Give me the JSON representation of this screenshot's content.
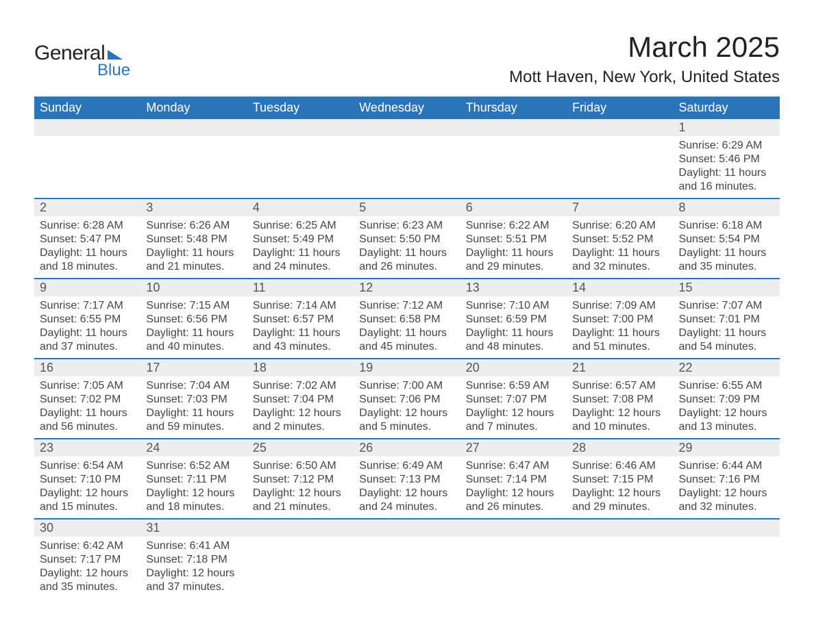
{
  "brand": {
    "name1": "General",
    "name2": "Blue",
    "tri_color": "#2a74b8"
  },
  "title": "March 2025",
  "location": "Mott Haven, New York, United States",
  "header_bg": "#2a74b8",
  "header_fg": "#ffffff",
  "row_stripe_bg": "#ededed",
  "row_divider_color": "#2a74b8",
  "text_color": "#444444",
  "days": [
    "Sunday",
    "Monday",
    "Tuesday",
    "Wednesday",
    "Thursday",
    "Friday",
    "Saturday"
  ],
  "weeks": [
    [
      null,
      null,
      null,
      null,
      null,
      null,
      {
        "n": "1",
        "sr": "Sunrise: 6:29 AM",
        "ss": "Sunset: 5:46 PM",
        "dl": "Daylight: 11 hours and 16 minutes."
      }
    ],
    [
      {
        "n": "2",
        "sr": "Sunrise: 6:28 AM",
        "ss": "Sunset: 5:47 PM",
        "dl": "Daylight: 11 hours and 18 minutes."
      },
      {
        "n": "3",
        "sr": "Sunrise: 6:26 AM",
        "ss": "Sunset: 5:48 PM",
        "dl": "Daylight: 11 hours and 21 minutes."
      },
      {
        "n": "4",
        "sr": "Sunrise: 6:25 AM",
        "ss": "Sunset: 5:49 PM",
        "dl": "Daylight: 11 hours and 24 minutes."
      },
      {
        "n": "5",
        "sr": "Sunrise: 6:23 AM",
        "ss": "Sunset: 5:50 PM",
        "dl": "Daylight: 11 hours and 26 minutes."
      },
      {
        "n": "6",
        "sr": "Sunrise: 6:22 AM",
        "ss": "Sunset: 5:51 PM",
        "dl": "Daylight: 11 hours and 29 minutes."
      },
      {
        "n": "7",
        "sr": "Sunrise: 6:20 AM",
        "ss": "Sunset: 5:52 PM",
        "dl": "Daylight: 11 hours and 32 minutes."
      },
      {
        "n": "8",
        "sr": "Sunrise: 6:18 AM",
        "ss": "Sunset: 5:54 PM",
        "dl": "Daylight: 11 hours and 35 minutes."
      }
    ],
    [
      {
        "n": "9",
        "sr": "Sunrise: 7:17 AM",
        "ss": "Sunset: 6:55 PM",
        "dl": "Daylight: 11 hours and 37 minutes."
      },
      {
        "n": "10",
        "sr": "Sunrise: 7:15 AM",
        "ss": "Sunset: 6:56 PM",
        "dl": "Daylight: 11 hours and 40 minutes."
      },
      {
        "n": "11",
        "sr": "Sunrise: 7:14 AM",
        "ss": "Sunset: 6:57 PM",
        "dl": "Daylight: 11 hours and 43 minutes."
      },
      {
        "n": "12",
        "sr": "Sunrise: 7:12 AM",
        "ss": "Sunset: 6:58 PM",
        "dl": "Daylight: 11 hours and 45 minutes."
      },
      {
        "n": "13",
        "sr": "Sunrise: 7:10 AM",
        "ss": "Sunset: 6:59 PM",
        "dl": "Daylight: 11 hours and 48 minutes."
      },
      {
        "n": "14",
        "sr": "Sunrise: 7:09 AM",
        "ss": "Sunset: 7:00 PM",
        "dl": "Daylight: 11 hours and 51 minutes."
      },
      {
        "n": "15",
        "sr": "Sunrise: 7:07 AM",
        "ss": "Sunset: 7:01 PM",
        "dl": "Daylight: 11 hours and 54 minutes."
      }
    ],
    [
      {
        "n": "16",
        "sr": "Sunrise: 7:05 AM",
        "ss": "Sunset: 7:02 PM",
        "dl": "Daylight: 11 hours and 56 minutes."
      },
      {
        "n": "17",
        "sr": "Sunrise: 7:04 AM",
        "ss": "Sunset: 7:03 PM",
        "dl": "Daylight: 11 hours and 59 minutes."
      },
      {
        "n": "18",
        "sr": "Sunrise: 7:02 AM",
        "ss": "Sunset: 7:04 PM",
        "dl": "Daylight: 12 hours and 2 minutes."
      },
      {
        "n": "19",
        "sr": "Sunrise: 7:00 AM",
        "ss": "Sunset: 7:06 PM",
        "dl": "Daylight: 12 hours and 5 minutes."
      },
      {
        "n": "20",
        "sr": "Sunrise: 6:59 AM",
        "ss": "Sunset: 7:07 PM",
        "dl": "Daylight: 12 hours and 7 minutes."
      },
      {
        "n": "21",
        "sr": "Sunrise: 6:57 AM",
        "ss": "Sunset: 7:08 PM",
        "dl": "Daylight: 12 hours and 10 minutes."
      },
      {
        "n": "22",
        "sr": "Sunrise: 6:55 AM",
        "ss": "Sunset: 7:09 PM",
        "dl": "Daylight: 12 hours and 13 minutes."
      }
    ],
    [
      {
        "n": "23",
        "sr": "Sunrise: 6:54 AM",
        "ss": "Sunset: 7:10 PM",
        "dl": "Daylight: 12 hours and 15 minutes."
      },
      {
        "n": "24",
        "sr": "Sunrise: 6:52 AM",
        "ss": "Sunset: 7:11 PM",
        "dl": "Daylight: 12 hours and 18 minutes."
      },
      {
        "n": "25",
        "sr": "Sunrise: 6:50 AM",
        "ss": "Sunset: 7:12 PM",
        "dl": "Daylight: 12 hours and 21 minutes."
      },
      {
        "n": "26",
        "sr": "Sunrise: 6:49 AM",
        "ss": "Sunset: 7:13 PM",
        "dl": "Daylight: 12 hours and 24 minutes."
      },
      {
        "n": "27",
        "sr": "Sunrise: 6:47 AM",
        "ss": "Sunset: 7:14 PM",
        "dl": "Daylight: 12 hours and 26 minutes."
      },
      {
        "n": "28",
        "sr": "Sunrise: 6:46 AM",
        "ss": "Sunset: 7:15 PM",
        "dl": "Daylight: 12 hours and 29 minutes."
      },
      {
        "n": "29",
        "sr": "Sunrise: 6:44 AM",
        "ss": "Sunset: 7:16 PM",
        "dl": "Daylight: 12 hours and 32 minutes."
      }
    ],
    [
      {
        "n": "30",
        "sr": "Sunrise: 6:42 AM",
        "ss": "Sunset: 7:17 PM",
        "dl": "Daylight: 12 hours and 35 minutes."
      },
      {
        "n": "31",
        "sr": "Sunrise: 6:41 AM",
        "ss": "Sunset: 7:18 PM",
        "dl": "Daylight: 12 hours and 37 minutes."
      },
      null,
      null,
      null,
      null,
      null
    ]
  ]
}
